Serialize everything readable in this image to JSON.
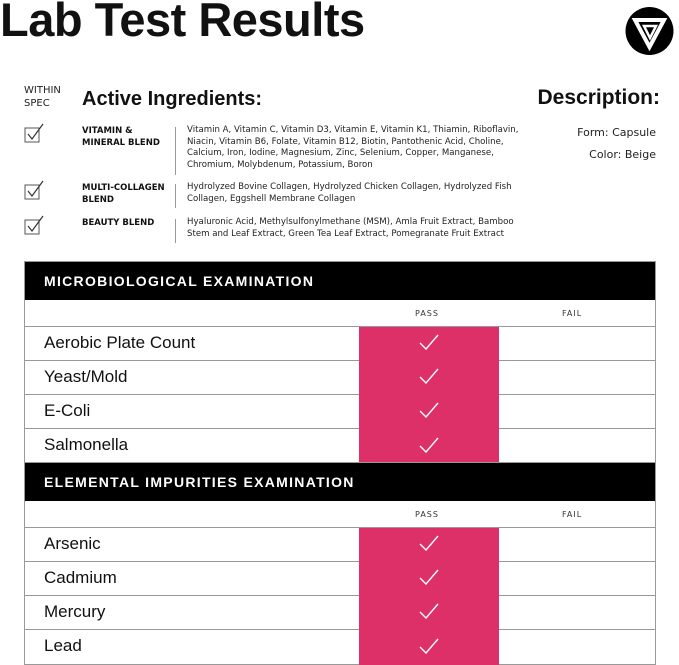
{
  "title": "Lab Test Results",
  "within_spec_label": "WITHIN SPEC",
  "active_ingredients_title": "Active Ingredients:",
  "description": {
    "title": "Description:",
    "form": "Form: Capsule",
    "color": "Color: Beige"
  },
  "blends": [
    {
      "name": "VITAMIN & MINERAL BLEND",
      "ingredients": "Vitamin A, Vitamin C, Vitamin D3, Vitamin E, Vitamin K1, Thiamin, Riboflavin, Niacin, Vitamin B6, Folate, Vitamin B12, Biotin, Pantothenic Acid, Choline, Calcium, Iron, Iodine, Magnesium, Zinc, Selenium, Copper, Manganese, Chromium, Molybdenum, Potassium, Boron",
      "within_spec": true
    },
    {
      "name": "MULTI-COLLAGEN BLEND",
      "ingredients": "Hydrolyzed Bovine Collagen, Hydrolyzed Chicken Collagen, Hydrolyzed Fish Collagen, Eggshell Membrane Collagen",
      "within_spec": true
    },
    {
      "name": "BEAUTY BLEND",
      "ingredients": "Hyaluronic Acid, Methylsulfonylmethane (MSM), Amla Fruit Extract, Bamboo Stem and Leaf Extract, Green Tea Leaf Extract, Pomegranate Fruit Extract",
      "within_spec": true
    }
  ],
  "tables": [
    {
      "title": "MICROBIOLOGICAL EXAMINATION",
      "pass": "PASS",
      "fail": "FAIL",
      "rows": [
        {
          "label": "Aerobic Plate Count",
          "result": "pass"
        },
        {
          "label": "Yeast/Mold",
          "result": "pass"
        },
        {
          "label": "E-Coli",
          "result": "pass"
        },
        {
          "label": "Salmonella",
          "result": "pass"
        }
      ]
    },
    {
      "title": "ELEMENTAL IMPURITIES EXAMINATION",
      "pass": "PASS",
      "fail": "FAIL",
      "rows": [
        {
          "label": "Arsenic",
          "result": "pass"
        },
        {
          "label": "Cadmium",
          "result": "pass"
        },
        {
          "label": "Mercury",
          "result": "pass"
        },
        {
          "label": "Lead",
          "result": "pass"
        }
      ]
    }
  ],
  "colors": {
    "pass": "#dd3068",
    "header": "#000000"
  }
}
